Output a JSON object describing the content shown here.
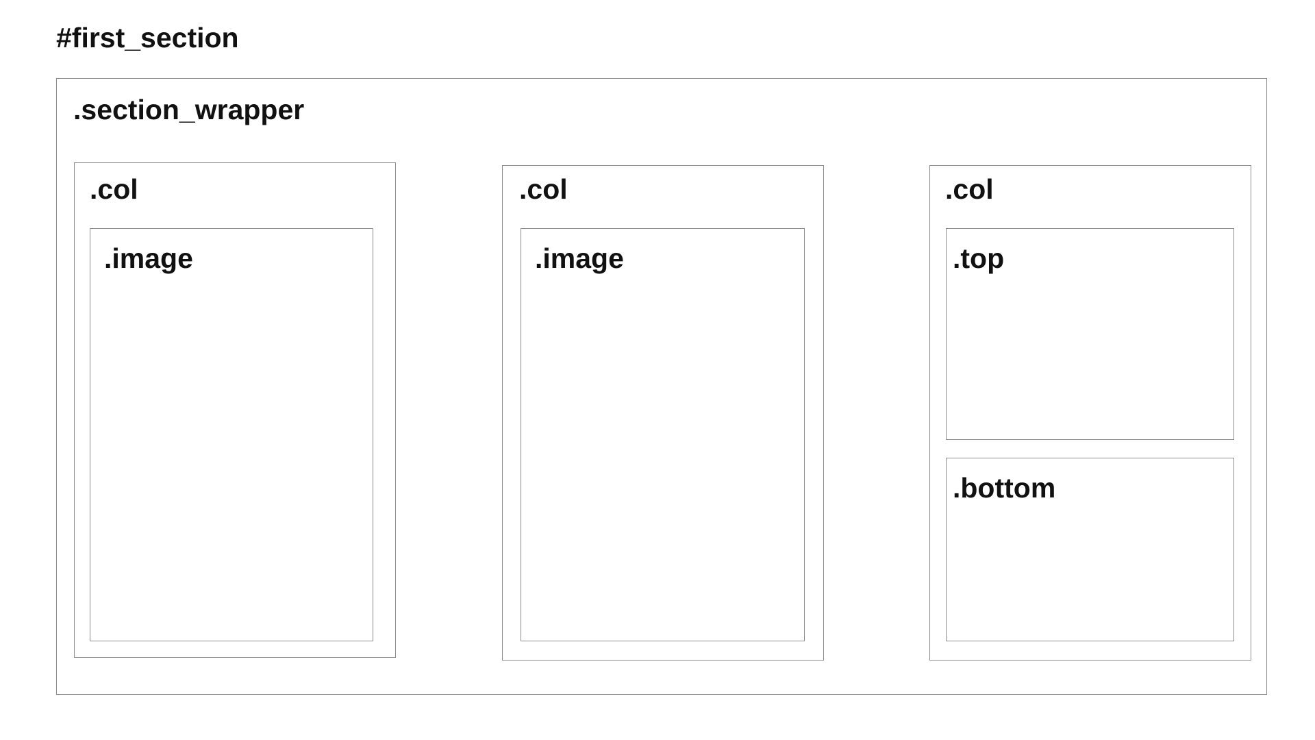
{
  "diagram": {
    "title": "#first_section",
    "wrapper": {
      "label": ".section_wrapper",
      "columns": [
        {
          "label": ".col",
          "children": [
            {
              "label": ".image"
            }
          ]
        },
        {
          "label": ".col",
          "children": [
            {
              "label": ".image"
            }
          ]
        },
        {
          "label": ".col",
          "children": [
            {
              "label": ".top"
            },
            {
              "label": ".bottom"
            }
          ]
        }
      ]
    }
  }
}
